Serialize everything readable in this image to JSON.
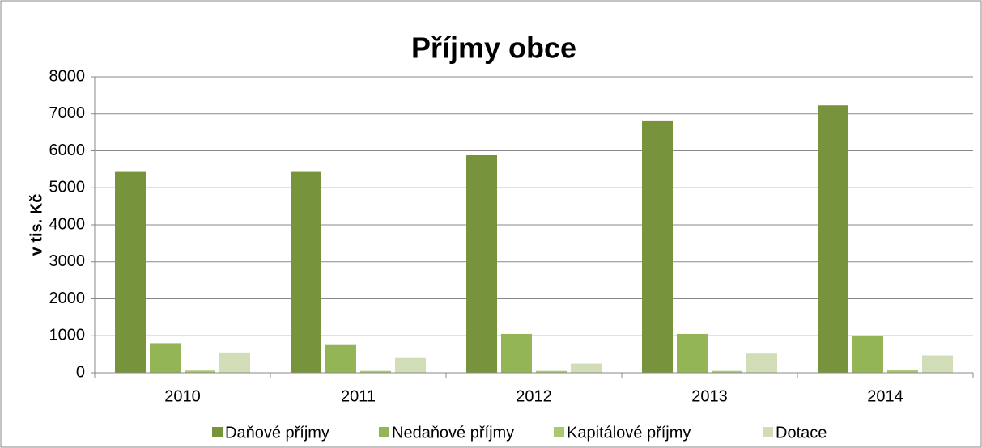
{
  "chart_data": {
    "type": "bar",
    "title": "Příjmy obce",
    "y_label": "v tis. Kč",
    "categories": [
      "2010",
      "2011",
      "2012",
      "2013",
      "2014"
    ],
    "series": [
      {
        "name": "Daňové příjmy",
        "color": "#77933c",
        "values": [
          5430,
          5430,
          5880,
          6800,
          7230
        ]
      },
      {
        "name": "Nedaňové příjmy",
        "color": "#93b556",
        "values": [
          800,
          750,
          1050,
          1050,
          1000
        ]
      },
      {
        "name": "Kapitálové příjmy",
        "color": "#aac870",
        "values": [
          60,
          50,
          50,
          50,
          80
        ]
      },
      {
        "name": "Dotace",
        "color": "#d0ddb6",
        "values": [
          550,
          400,
          250,
          520,
          470
        ]
      }
    ],
    "ylim": [
      0,
      8000
    ],
    "yticks": [
      0,
      1000,
      2000,
      3000,
      4000,
      5000,
      6000,
      7000,
      8000
    ],
    "grid": true,
    "legend": "bottom"
  }
}
